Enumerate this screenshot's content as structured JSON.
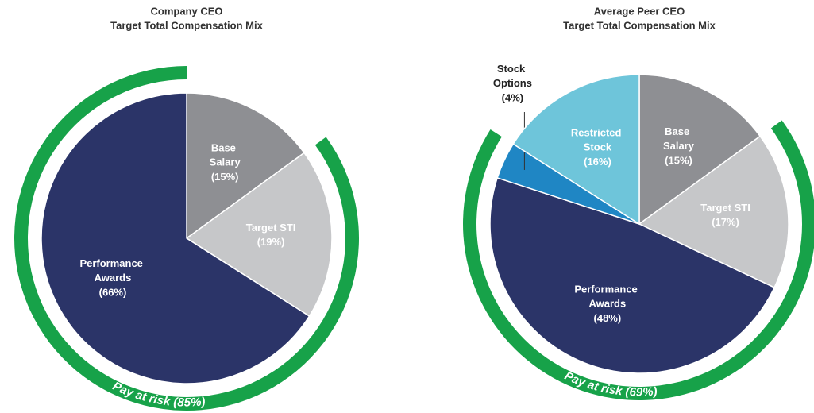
{
  "chart_data": [
    {
      "type": "pie",
      "title": "Company CEO",
      "subtitle": "Target Total Compensation Mix",
      "categories": [
        "Base Salary",
        "Target STI",
        "Performance Awards"
      ],
      "values": [
        15,
        19,
        66
      ],
      "value_labels": [
        "(15%)",
        "(19%)",
        "(66%)"
      ],
      "colors": [
        "#8e8f93",
        "#c6c7c9",
        "#2b3468"
      ],
      "risk": {
        "label": "Pay at risk (85%)",
        "value": 85,
        "color": "#17a249"
      }
    },
    {
      "type": "pie",
      "title": "Average Peer CEO",
      "subtitle": "Target Total Compensation Mix",
      "categories": [
        "Base Salary",
        "Target STI",
        "Performance Awards",
        "Stock Options",
        "Restricted Stock"
      ],
      "values": [
        15,
        17,
        48,
        4,
        16
      ],
      "value_labels": [
        "(15%)",
        "(17%)",
        "(48%)",
        "(4%)",
        "(16%)"
      ],
      "colors": [
        "#8e8f93",
        "#c6c7c9",
        "#2b3468",
        "#1f86c4",
        "#6ec5da"
      ],
      "risk": {
        "label": "Pay at risk (69%)",
        "value": 69,
        "color": "#17a249"
      }
    }
  ]
}
